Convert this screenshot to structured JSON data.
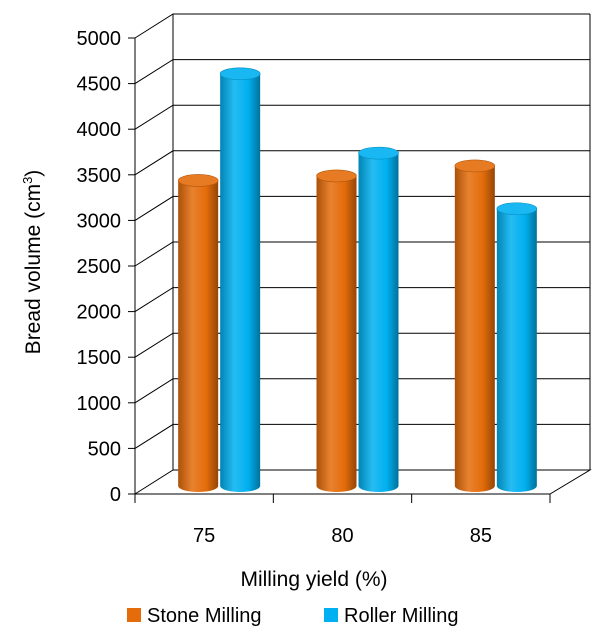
{
  "chart_data": {
    "type": "bar",
    "style": "3d-cylinder",
    "categories": [
      "75",
      "80",
      "85"
    ],
    "series": [
      {
        "name": "Stone Milling",
        "color": "#E46C0A",
        "values": [
          3350,
          3400,
          3510
        ]
      },
      {
        "name": "Roller Milling",
        "color": "#00B0F0",
        "values": [
          4520,
          3650,
          3040
        ]
      }
    ],
    "xlabel": "Milling yield (%)",
    "ylabel_main": "Bread volume (cm",
    "ylabel_sup": "3",
    "ylabel_end": ")",
    "ylim": [
      0,
      5000
    ],
    "yticks": [
      "0",
      "500",
      "1000",
      "1500",
      "2000",
      "2500",
      "3000",
      "3500",
      "4000",
      "4500",
      "5000"
    ],
    "grid": true,
    "legend": "bottom"
  }
}
